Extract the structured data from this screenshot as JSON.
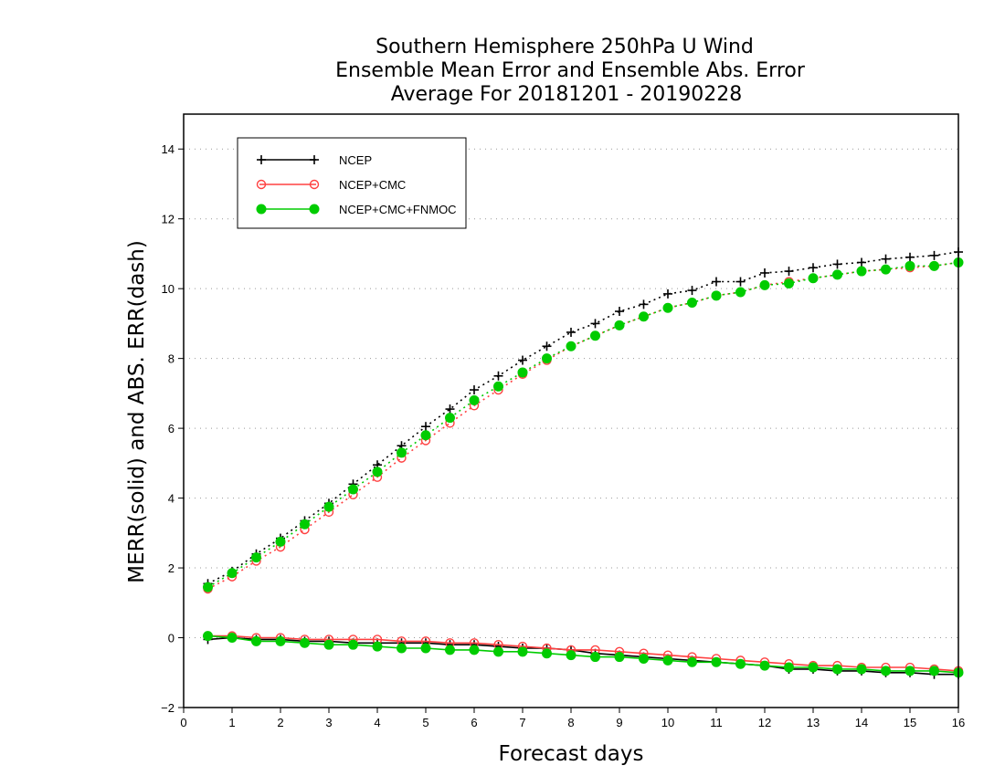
{
  "chart_data": {
    "type": "line",
    "title": [
      "Southern Hemisphere 250hPa U Wind",
      "Ensemble Mean Error and Ensemble Abs. Error",
      "Average For 20181201 - 20190228"
    ],
    "xlabel": "Forecast days",
    "ylabel": "MERR(solid) and ABS. ERR(dash)",
    "xlim": [
      0,
      16
    ],
    "ylim": [
      -2,
      15
    ],
    "xticks": [
      0,
      1,
      2,
      3,
      4,
      5,
      6,
      7,
      8,
      9,
      10,
      11,
      12,
      13,
      14,
      15,
      16
    ],
    "yticks": [
      -2,
      0,
      2,
      4,
      6,
      8,
      10,
      12,
      14
    ],
    "grid": "horizontal dotted",
    "legend_position": "top-left",
    "x": [
      0.5,
      1,
      1.5,
      2,
      2.5,
      3,
      3.5,
      4,
      4.5,
      5,
      5.5,
      6,
      6.5,
      7,
      7.5,
      8,
      8.5,
      9,
      9.5,
      10,
      10.5,
      11,
      11.5,
      12,
      12.5,
      13,
      13.5,
      14,
      14.5,
      15,
      15.5,
      16
    ],
    "series": [
      {
        "name": "NCEP",
        "color": "#000000",
        "marker": "plus",
        "abs_err": [
          1.55,
          1.9,
          2.4,
          2.85,
          3.35,
          3.85,
          4.4,
          4.95,
          5.5,
          6.05,
          6.55,
          7.1,
          7.5,
          7.95,
          8.35,
          8.75,
          9.0,
          9.35,
          9.55,
          9.85,
          9.95,
          10.2,
          10.2,
          10.45,
          10.5,
          10.6,
          10.7,
          10.75,
          10.85,
          10.9,
          10.95,
          11.05
        ],
        "mean_err": [
          -0.05,
          0.0,
          -0.05,
          -0.05,
          -0.1,
          -0.1,
          -0.15,
          -0.15,
          -0.15,
          -0.15,
          -0.2,
          -0.2,
          -0.25,
          -0.3,
          -0.3,
          -0.35,
          -0.45,
          -0.5,
          -0.55,
          -0.6,
          -0.65,
          -0.7,
          -0.75,
          -0.8,
          -0.9,
          -0.9,
          -0.95,
          -0.95,
          -1.0,
          -1.0,
          -1.05,
          -1.05
        ]
      },
      {
        "name": "NCEP+CMC",
        "color": "#ff4040",
        "marker": "open-circle",
        "abs_err": [
          1.4,
          1.75,
          2.2,
          2.6,
          3.1,
          3.6,
          4.1,
          4.6,
          5.15,
          5.65,
          6.15,
          6.65,
          7.1,
          7.55,
          7.95,
          8.35,
          8.65,
          8.95,
          9.2,
          9.45,
          9.6,
          9.8,
          9.9,
          10.1,
          10.2,
          10.3,
          10.4,
          10.5,
          10.55,
          10.6,
          10.65,
          10.75
        ],
        "mean_err": [
          0.05,
          0.05,
          0.0,
          0.0,
          -0.05,
          -0.05,
          -0.05,
          -0.05,
          -0.1,
          -0.1,
          -0.15,
          -0.15,
          -0.2,
          -0.25,
          -0.3,
          -0.35,
          -0.35,
          -0.4,
          -0.45,
          -0.5,
          -0.55,
          -0.6,
          -0.65,
          -0.7,
          -0.75,
          -0.8,
          -0.8,
          -0.85,
          -0.85,
          -0.85,
          -0.9,
          -0.95
        ]
      },
      {
        "name": "NCEP+CMC+FNMOC",
        "color": "#00cc00",
        "marker": "filled-circle",
        "abs_err": [
          1.45,
          1.85,
          2.3,
          2.75,
          3.25,
          3.75,
          4.25,
          4.75,
          5.3,
          5.8,
          6.3,
          6.8,
          7.2,
          7.6,
          8.0,
          8.35,
          8.65,
          8.95,
          9.2,
          9.45,
          9.6,
          9.8,
          9.9,
          10.1,
          10.15,
          10.3,
          10.4,
          10.5,
          10.55,
          10.65,
          10.65,
          10.75
        ],
        "mean_err": [
          0.05,
          0.0,
          -0.1,
          -0.1,
          -0.15,
          -0.2,
          -0.2,
          -0.25,
          -0.3,
          -0.3,
          -0.35,
          -0.35,
          -0.4,
          -0.4,
          -0.45,
          -0.5,
          -0.55,
          -0.55,
          -0.6,
          -0.65,
          -0.7,
          -0.7,
          -0.75,
          -0.8,
          -0.85,
          -0.85,
          -0.9,
          -0.9,
          -0.95,
          -0.95,
          -0.95,
          -1.0
        ]
      }
    ]
  }
}
